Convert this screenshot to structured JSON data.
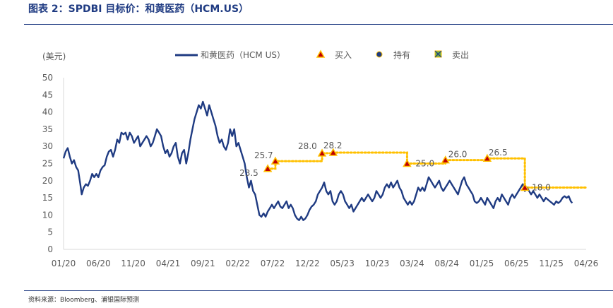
{
  "header": {
    "title": "图表 2：SPDBI 目标价：和黄医药（HCM.US）"
  },
  "footer": {
    "source": "资料来源：Bloomberg、浦银国际预测"
  },
  "chart_data": {
    "type": "line",
    "ylabel": "(美元)",
    "ylim": [
      0,
      50
    ],
    "yticks": [
      0,
      5,
      10,
      15,
      20,
      25,
      30,
      35,
      40,
      45,
      50
    ],
    "xlim": [
      0,
      75
    ],
    "xticks": [
      {
        "m": 0,
        "label": "01/20"
      },
      {
        "m": 5,
        "label": "06/20"
      },
      {
        "m": 10,
        "label": "11/20"
      },
      {
        "m": 15,
        "label": "04/21"
      },
      {
        "m": 20,
        "label": "09/21"
      },
      {
        "m": 25,
        "label": "02/22"
      },
      {
        "m": 30,
        "label": "07/22"
      },
      {
        "m": 35,
        "label": "12/22"
      },
      {
        "m": 40,
        "label": "05/23"
      },
      {
        "m": 45,
        "label": "10/23"
      },
      {
        "m": 50,
        "label": "03/24"
      },
      {
        "m": 55,
        "label": "08/24"
      },
      {
        "m": 60,
        "label": "01/25"
      },
      {
        "m": 65,
        "label": "06/25"
      },
      {
        "m": 70,
        "label": "11/25"
      },
      {
        "m": 75,
        "label": "04/26"
      }
    ],
    "legend": [
      {
        "key": "price",
        "label": "和黄医药（HCM US）"
      },
      {
        "key": "buy",
        "label": "买入"
      },
      {
        "key": "hold",
        "label": "持有"
      },
      {
        "key": "sell",
        "label": "卖出"
      }
    ],
    "series": [
      {
        "name": "和黄医药（HCM US）",
        "color": "#1f3b82",
        "points": [
          [
            0,
            26.5
          ],
          [
            0.3,
            28.5
          ],
          [
            0.6,
            29.5
          ],
          [
            0.9,
            27
          ],
          [
            1.2,
            25
          ],
          [
            1.5,
            26
          ],
          [
            1.8,
            24
          ],
          [
            2.1,
            23
          ],
          [
            2.4,
            19
          ],
          [
            2.6,
            16
          ],
          [
            2.9,
            18
          ],
          [
            3.2,
            19
          ],
          [
            3.5,
            18.5
          ],
          [
            3.8,
            20
          ],
          [
            4.1,
            22
          ],
          [
            4.4,
            21
          ],
          [
            4.7,
            22
          ],
          [
            5,
            21
          ],
          [
            5.3,
            23
          ],
          [
            5.6,
            24
          ],
          [
            5.9,
            24.5
          ],
          [
            6.2,
            27
          ],
          [
            6.5,
            28.5
          ],
          [
            6.8,
            29
          ],
          [
            7.1,
            27
          ],
          [
            7.4,
            29
          ],
          [
            7.7,
            32
          ],
          [
            8,
            31
          ],
          [
            8.3,
            34
          ],
          [
            8.6,
            33.5
          ],
          [
            8.9,
            34
          ],
          [
            9.2,
            32
          ],
          [
            9.5,
            34
          ],
          [
            9.8,
            33
          ],
          [
            10.1,
            31
          ],
          [
            10.4,
            32
          ],
          [
            10.7,
            33
          ],
          [
            11,
            30
          ],
          [
            11.3,
            31
          ],
          [
            11.6,
            32
          ],
          [
            11.9,
            33
          ],
          [
            12.2,
            32
          ],
          [
            12.5,
            30
          ],
          [
            12.8,
            31
          ],
          [
            13.1,
            33
          ],
          [
            13.4,
            35
          ],
          [
            13.7,
            34
          ],
          [
            14,
            33
          ],
          [
            14.3,
            30
          ],
          [
            14.6,
            28
          ],
          [
            14.9,
            29
          ],
          [
            15.2,
            27
          ],
          [
            15.5,
            28
          ],
          [
            15.8,
            30
          ],
          [
            16.1,
            31
          ],
          [
            16.4,
            27
          ],
          [
            16.7,
            25
          ],
          [
            17,
            28
          ],
          [
            17.3,
            29
          ],
          [
            17.6,
            25
          ],
          [
            17.9,
            28
          ],
          [
            18.2,
            32
          ],
          [
            18.5,
            35
          ],
          [
            18.8,
            38
          ],
          [
            19.1,
            40
          ],
          [
            19.4,
            42
          ],
          [
            19.7,
            41
          ],
          [
            20,
            43
          ],
          [
            20.3,
            41
          ],
          [
            20.6,
            39
          ],
          [
            20.9,
            42
          ],
          [
            21.2,
            40
          ],
          [
            21.5,
            38
          ],
          [
            21.8,
            36
          ],
          [
            22.1,
            33
          ],
          [
            22.4,
            31
          ],
          [
            22.7,
            32
          ],
          [
            23,
            30
          ],
          [
            23.3,
            29
          ],
          [
            23.6,
            31
          ],
          [
            23.9,
            35
          ],
          [
            24.2,
            33
          ],
          [
            24.5,
            35
          ],
          [
            24.8,
            30
          ],
          [
            25.1,
            31
          ],
          [
            25.4,
            29
          ],
          [
            25.7,
            27
          ],
          [
            26,
            25
          ],
          [
            26.3,
            21
          ],
          [
            26.6,
            18
          ],
          [
            26.9,
            20
          ],
          [
            27.2,
            17
          ],
          [
            27.5,
            16
          ],
          [
            27.8,
            13
          ],
          [
            28.1,
            10
          ],
          [
            28.4,
            9.5
          ],
          [
            28.7,
            10.5
          ],
          [
            29,
            9.5
          ],
          [
            29.3,
            11
          ],
          [
            29.6,
            12
          ],
          [
            29.9,
            13
          ],
          [
            30.2,
            12
          ],
          [
            30.5,
            13
          ],
          [
            30.8,
            14
          ],
          [
            31.1,
            12.5
          ],
          [
            31.4,
            12
          ],
          [
            31.7,
            13
          ],
          [
            32,
            14
          ],
          [
            32.3,
            12
          ],
          [
            32.6,
            13
          ],
          [
            32.9,
            12
          ],
          [
            33.2,
            10
          ],
          [
            33.5,
            9
          ],
          [
            33.8,
            8.5
          ],
          [
            34.1,
            9.5
          ],
          [
            34.4,
            8.5
          ],
          [
            34.7,
            9
          ],
          [
            35,
            10
          ],
          [
            35.3,
            11.5
          ],
          [
            35.6,
            12.5
          ],
          [
            35.9,
            13
          ],
          [
            36.2,
            14
          ],
          [
            36.5,
            16
          ],
          [
            36.8,
            17
          ],
          [
            37.1,
            18
          ],
          [
            37.4,
            19.5
          ],
          [
            37.7,
            17
          ],
          [
            38,
            16
          ],
          [
            38.3,
            17
          ],
          [
            38.6,
            14
          ],
          [
            38.9,
            13
          ],
          [
            39.2,
            14
          ],
          [
            39.5,
            16
          ],
          [
            39.8,
            17
          ],
          [
            40.1,
            16
          ],
          [
            40.4,
            14
          ],
          [
            40.7,
            13
          ],
          [
            41,
            12
          ],
          [
            41.3,
            13
          ],
          [
            41.6,
            11
          ],
          [
            41.9,
            12
          ],
          [
            42.2,
            13
          ],
          [
            42.5,
            14
          ],
          [
            42.8,
            15
          ],
          [
            43.1,
            14
          ],
          [
            43.4,
            15
          ],
          [
            43.7,
            16
          ],
          [
            44,
            15
          ],
          [
            44.3,
            14
          ],
          [
            44.6,
            15
          ],
          [
            44.9,
            17
          ],
          [
            45.2,
            16
          ],
          [
            45.5,
            15
          ],
          [
            45.8,
            16
          ],
          [
            46.1,
            18
          ],
          [
            46.4,
            19
          ],
          [
            46.7,
            18
          ],
          [
            47,
            19.5
          ],
          [
            47.3,
            18
          ],
          [
            47.6,
            19
          ],
          [
            47.9,
            20
          ],
          [
            48.2,
            18
          ],
          [
            48.5,
            17
          ],
          [
            48.8,
            15
          ],
          [
            49.1,
            14
          ],
          [
            49.4,
            13
          ],
          [
            49.7,
            14
          ],
          [
            50,
            13
          ],
          [
            50.3,
            14
          ],
          [
            50.6,
            16
          ],
          [
            50.9,
            18
          ],
          [
            51.2,
            17
          ],
          [
            51.5,
            18
          ],
          [
            51.8,
            17
          ],
          [
            52.1,
            19
          ],
          [
            52.4,
            21
          ],
          [
            52.7,
            20
          ],
          [
            53,
            19
          ],
          [
            53.3,
            18
          ],
          [
            53.6,
            19
          ],
          [
            53.9,
            20
          ],
          [
            54.2,
            18
          ],
          [
            54.5,
            17
          ],
          [
            54.8,
            18
          ],
          [
            55.1,
            19
          ],
          [
            55.4,
            20
          ],
          [
            55.7,
            19
          ],
          [
            56,
            18
          ],
          [
            56.3,
            17
          ],
          [
            56.6,
            16
          ],
          [
            56.9,
            18
          ],
          [
            57.2,
            20
          ],
          [
            57.5,
            21
          ],
          [
            57.8,
            19
          ],
          [
            58.1,
            18
          ],
          [
            58.4,
            17
          ],
          [
            58.7,
            16
          ],
          [
            59,
            14
          ],
          [
            59.3,
            13.5
          ],
          [
            59.6,
            14
          ],
          [
            59.9,
            15
          ],
          [
            60.2,
            14
          ],
          [
            60.5,
            13
          ],
          [
            60.8,
            15
          ],
          [
            61.1,
            14
          ],
          [
            61.4,
            13
          ],
          [
            61.7,
            12
          ],
          [
            62,
            14
          ],
          [
            62.3,
            15
          ],
          [
            62.6,
            14
          ],
          [
            62.9,
            16
          ],
          [
            63.2,
            15
          ],
          [
            63.5,
            14
          ],
          [
            63.8,
            13
          ],
          [
            64.1,
            15
          ],
          [
            64.4,
            16
          ],
          [
            64.7,
            15
          ],
          [
            65,
            16
          ],
          [
            65.3,
            17
          ],
          [
            65.6,
            18
          ],
          [
            65.9,
            19
          ],
          [
            66.2,
            17
          ],
          [
            66.5,
            18
          ],
          [
            66.8,
            17
          ],
          [
            67.1,
            16
          ],
          [
            67.4,
            17
          ],
          [
            67.7,
            16
          ],
          [
            68,
            15
          ],
          [
            68.3,
            16
          ],
          [
            68.6,
            15
          ],
          [
            68.9,
            14
          ],
          [
            69.2,
            15
          ],
          [
            69.5,
            14.5
          ],
          [
            69.8,
            14
          ],
          [
            70.1,
            13.5
          ],
          [
            70.4,
            13
          ],
          [
            70.7,
            14
          ],
          [
            71,
            13.5
          ],
          [
            71.3,
            14
          ],
          [
            71.6,
            15
          ],
          [
            71.9,
            15.5
          ],
          [
            72.2,
            15
          ],
          [
            72.5,
            15.5
          ],
          [
            72.8,
            14
          ],
          [
            73,
            13.5
          ]
        ]
      }
    ],
    "target_prices": [
      {
        "m": 29.3,
        "value": 23.5,
        "rating": "buy",
        "label": "23.5"
      },
      {
        "m": 30.4,
        "value": 25.7,
        "rating": "buy",
        "label": "25.7"
      },
      {
        "m": 37.1,
        "value": 28.0,
        "rating": "buy",
        "label": "28.0"
      },
      {
        "m": 38.7,
        "value": 28.2,
        "rating": "buy",
        "label": "28.2"
      },
      {
        "m": 49.3,
        "value": 25.0,
        "rating": "buy",
        "label": "25.0"
      },
      {
        "m": 54.8,
        "value": 26.0,
        "rating": "buy",
        "label": "26.0"
      },
      {
        "m": 60.8,
        "value": 26.5,
        "rating": "buy",
        "label": "26.5"
      },
      {
        "m": 66.2,
        "value": 18.0,
        "rating": "buy",
        "label": "18.0"
      }
    ],
    "target_line_end_m": 75,
    "colors": {
      "line": "#1f3b82",
      "target_dots": "#ffc000",
      "buy_fill": "#c00000",
      "buy_edge": "#ffc000",
      "hold": "#1f3b82",
      "sell_fill": "#70ad47",
      "axis": "#d9d9d9"
    }
  }
}
